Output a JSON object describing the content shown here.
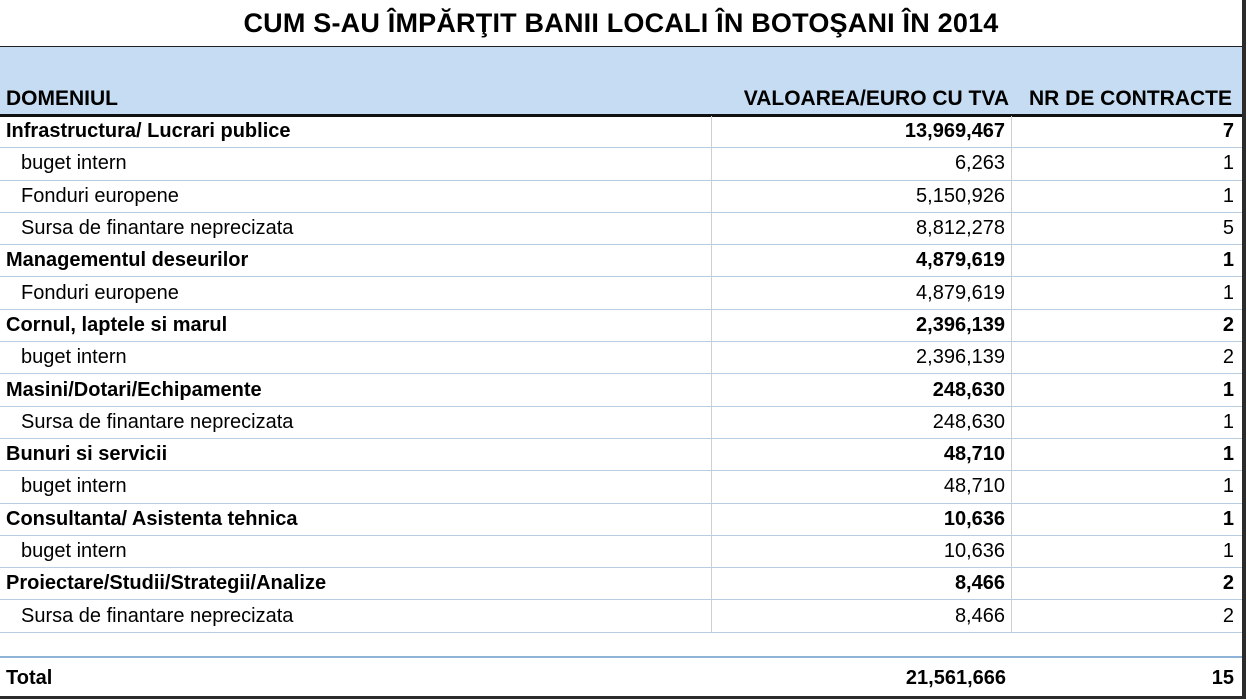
{
  "title": "CUM S-AU ÎMPĂRŢIT BANII LOCALI ÎN BOTOŞANI ÎN 2014",
  "headers": {
    "domain": "DOMENIUL",
    "value": "VALOAREA/EURO CU TVA",
    "contracts": "NR DE CONTRACTE"
  },
  "rows": [
    {
      "type": "main",
      "label": "Infrastructura/ Lucrari publice",
      "value": "13,969,467",
      "contracts": "7"
    },
    {
      "type": "sub",
      "label": "buget intern",
      "value": "6,263",
      "contracts": "1"
    },
    {
      "type": "sub",
      "label": "Fonduri europene",
      "value": "5,150,926",
      "contracts": "1"
    },
    {
      "type": "sub",
      "label": "Sursa de finantare neprecizata",
      "value": "8,812,278",
      "contracts": "5"
    },
    {
      "type": "main",
      "label": "Managementul deseurilor",
      "value": "4,879,619",
      "contracts": "1"
    },
    {
      "type": "sub",
      "label": "Fonduri europene",
      "value": "4,879,619",
      "contracts": "1"
    },
    {
      "type": "main",
      "label": "Cornul, laptele si marul",
      "value": "2,396,139",
      "contracts": "2"
    },
    {
      "type": "sub",
      "label": "buget intern",
      "value": "2,396,139",
      "contracts": "2"
    },
    {
      "type": "main",
      "label": "Masini/Dotari/Echipamente",
      "value": "248,630",
      "contracts": "1"
    },
    {
      "type": "sub",
      "label": "Sursa de finantare neprecizata",
      "value": "248,630",
      "contracts": "1"
    },
    {
      "type": "main",
      "label": "Bunuri si servicii",
      "value": "48,710",
      "contracts": "1"
    },
    {
      "type": "sub",
      "label": "buget intern",
      "value": "48,710",
      "contracts": "1"
    },
    {
      "type": "main",
      "label": "Consultanta/ Asistenta tehnica",
      "value": "10,636",
      "contracts": "1"
    },
    {
      "type": "sub",
      "label": "buget intern",
      "value": "10,636",
      "contracts": "1"
    },
    {
      "type": "main",
      "label": "Proiectare/Studii/Strategii/Analize",
      "value": "8,466",
      "contracts": "2"
    },
    {
      "type": "sub",
      "label": "Sursa de finantare neprecizata",
      "value": "8,466",
      "contracts": "2"
    }
  ],
  "total": {
    "label": "Total",
    "value": "21,561,666",
    "contracts": "15"
  }
}
